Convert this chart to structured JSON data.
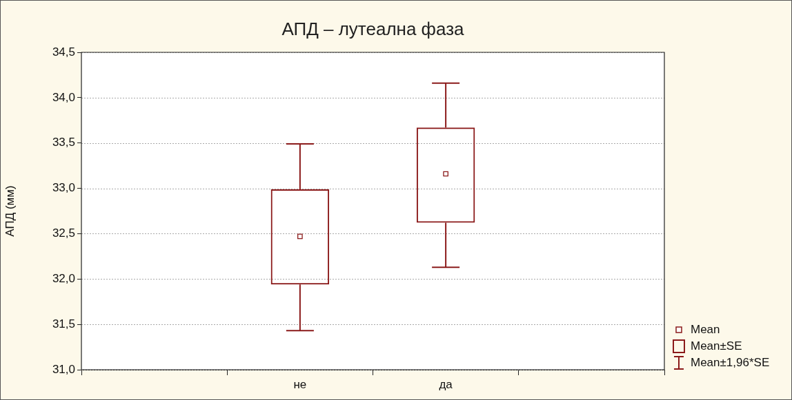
{
  "chart_data": {
    "type": "box",
    "title": "АПД – лутеална фаза",
    "ylabel": "АПД (мм)",
    "categories": [
      null,
      "не",
      "да",
      null
    ],
    "series": [
      {
        "color": "#8b1a1a",
        "boxes": [
          null,
          {
            "low": 31.43,
            "q1": 31.94,
            "median": 32.47,
            "q3": 32.99,
            "high": 33.49
          },
          {
            "low": 32.13,
            "q1": 32.62,
            "median": 33.16,
            "q3": 33.67,
            "high": 34.16
          },
          null
        ]
      }
    ],
    "ylim": [
      31,
      34.5
    ],
    "yticks": [
      {
        "value": 31,
        "label": "31,0"
      },
      {
        "value": 31.5,
        "label": "31,5"
      },
      {
        "value": 32,
        "label": "32,0"
      },
      {
        "value": 32.5,
        "label": "32,5"
      },
      {
        "value": 33,
        "label": "33,0"
      },
      {
        "value": 33.5,
        "label": "33,5"
      },
      {
        "value": 34,
        "label": "34,0"
      },
      {
        "value": 34.5,
        "label": "34,5"
      }
    ],
    "grid": "y",
    "annotations": [
      "Mean",
      "Mean±SE",
      "Mean±1,96*SE"
    ]
  }
}
